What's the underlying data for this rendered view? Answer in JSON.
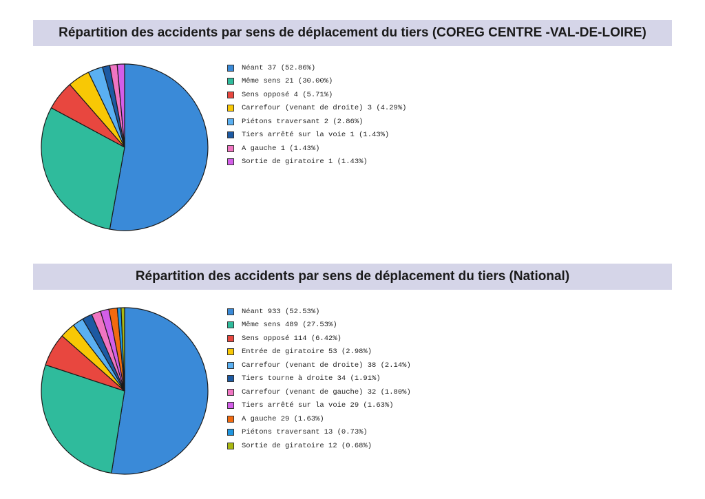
{
  "chart_data": [
    {
      "type": "pie",
      "title": "Répartition des accidents par sens de déplacement du tiers (COREG CENTRE -VAL-DE-LOIRE)",
      "slices": [
        {
          "label": "Néant 37 (52.86%)",
          "value": 37,
          "color": "#3a8ad8"
        },
        {
          "label": "Même sens 21 (30.00%)",
          "value": 21,
          "color": "#2fbb9c"
        },
        {
          "label": "Sens opposé 4 (5.71%)",
          "value": 4,
          "color": "#e8473f"
        },
        {
          "label": "Carrefour (venant de droite) 3 (4.29%)",
          "value": 3,
          "color": "#f8c805"
        },
        {
          "label": "Piétons traversant 2 (2.86%)",
          "value": 2,
          "color": "#5ab0f2"
        },
        {
          "label": "Tiers arrêté sur la voie 1 (1.43%)",
          "value": 1,
          "color": "#1c5aa3"
        },
        {
          "label": "A gauche 1 (1.43%)",
          "value": 1,
          "color": "#f075c2"
        },
        {
          "label": "Sortie de giratoire 1 (1.43%)",
          "value": 1,
          "color": "#d35ee8"
        }
      ],
      "legend_position": "right"
    },
    {
      "type": "pie",
      "title": "Répartition des accidents par sens de déplacement du tiers (National)",
      "slices": [
        {
          "label": "Néant 933 (52.53%)",
          "value": 933,
          "color": "#3a8ad8"
        },
        {
          "label": "Même sens 489 (27.53%)",
          "value": 489,
          "color": "#2fbb9c"
        },
        {
          "label": "Sens opposé 114 (6.42%)",
          "value": 114,
          "color": "#e8473f"
        },
        {
          "label": "Entrée de giratoire 53 (2.98%)",
          "value": 53,
          "color": "#f8c805"
        },
        {
          "label": "Carrefour (venant de droite) 38 (2.14%)",
          "value": 38,
          "color": "#5ab0f2"
        },
        {
          "label": "Tiers tourne à droite 34 (1.91%)",
          "value": 34,
          "color": "#1c5aa3"
        },
        {
          "label": "Carrefour (venant de gauche) 32 (1.80%)",
          "value": 32,
          "color": "#f075c2"
        },
        {
          "label": "Tiers arrêté sur la voie 29 (1.63%)",
          "value": 29,
          "color": "#d35ee8"
        },
        {
          "label": "A gauche 29 (1.63%)",
          "value": 29,
          "color": "#f26a0f"
        },
        {
          "label": "Piétons traversant 13 (0.73%)",
          "value": 13,
          "color": "#1f96e0"
        },
        {
          "label": "Sortie de giratoire 12 (0.68%)",
          "value": 12,
          "color": "#a9b811"
        }
      ],
      "legend_position": "right"
    }
  ]
}
